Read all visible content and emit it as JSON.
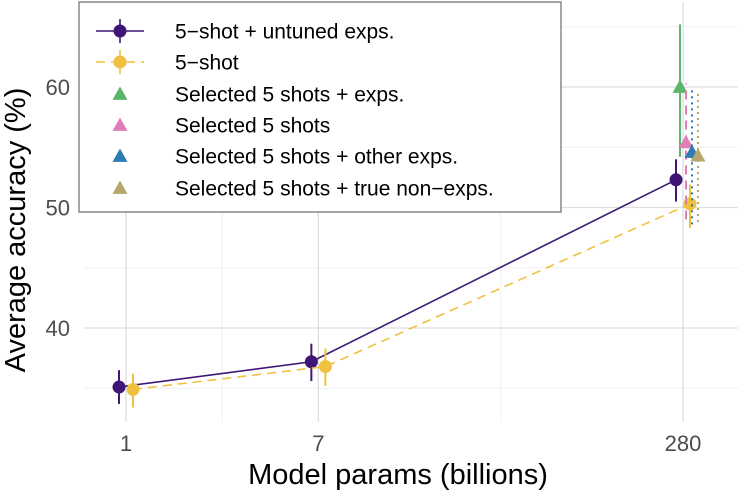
{
  "chart_data": {
    "type": "line",
    "xlabel": "Model params (billions)",
    "ylabel": "Average accuracy (%)",
    "x_scale": "log",
    "x_ticks": [
      1,
      7,
      280
    ],
    "x_tick_labels": [
      "1",
      "7",
      "280"
    ],
    "y_ticks": [
      40,
      50,
      60
    ],
    "y_tick_labels": [
      "40",
      "50",
      "60"
    ],
    "ylim": [
      31,
      66.5
    ],
    "grid": true,
    "legend_position": "top-left",
    "series": [
      {
        "name": "5−shot + untuned exps.",
        "kind": "line-point",
        "color": "#3f1577",
        "line_style": "solid",
        "marker": "circle",
        "x": [
          1,
          7,
          280
        ],
        "y": [
          35.1,
          37.2,
          52.3
        ],
        "err_low": [
          33.7,
          35.6,
          50.5
        ],
        "err_high": [
          36.5,
          38.7,
          54.0
        ]
      },
      {
        "name": "5−shot",
        "kind": "line-point",
        "color": "#f0c13e",
        "line_style": "dashed",
        "marker": "circle",
        "x": [
          1,
          7,
          280
        ],
        "y": [
          34.9,
          36.8,
          50.3
        ],
        "err_low": [
          33.4,
          35.2,
          48.3
        ],
        "err_high": [
          36.2,
          38.3,
          51.9
        ]
      },
      {
        "name": "Selected 5 shots + exps.",
        "kind": "point",
        "color": "#5db56c",
        "line_style": "solid",
        "marker": "triangle",
        "x": [
          280
        ],
        "y": [
          60.0
        ],
        "err_low": [
          54.2
        ],
        "err_high": [
          65.2
        ]
      },
      {
        "name": "Selected 5 shots",
        "kind": "point",
        "color": "#df7eb8",
        "line_style": "dashed",
        "marker": "triangle",
        "x": [
          280
        ],
        "y": [
          55.4
        ],
        "err_low": [
          49.0
        ],
        "err_high": [
          60.3
        ]
      },
      {
        "name": "Selected 5 shots + other exps.",
        "kind": "point",
        "color": "#2e7bb4",
        "line_style": "dotted",
        "marker": "triangle",
        "x": [
          280
        ],
        "y": [
          54.6
        ],
        "err_low": [
          48.6
        ],
        "err_high": [
          60.0
        ]
      },
      {
        "name": "Selected 5 shots + true non−exps.",
        "kind": "point",
        "color": "#b5a86a",
        "line_style": "dotted",
        "marker": "triangle",
        "x": [
          280
        ],
        "y": [
          54.3
        ],
        "err_low": [
          48.8
        ],
        "err_high": [
          59.6
        ]
      }
    ]
  }
}
